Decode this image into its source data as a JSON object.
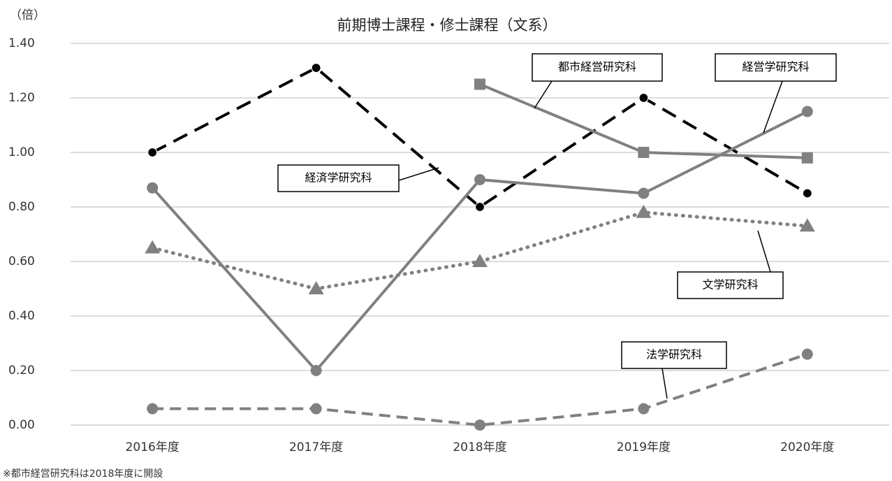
{
  "chart_data": {
    "type": "line",
    "title": "前期博士課程・修士課程（文系）",
    "y_label": "（倍）",
    "note": "※都市経営研究科は2018年度に開設",
    "categories": [
      "2016年度",
      "2017年度",
      "2018年度",
      "2019年度",
      "2020年度"
    ],
    "ylim": [
      0,
      1.4
    ],
    "yticks": [
      {
        "value": 0,
        "label": "0.00"
      },
      {
        "value": 0.2,
        "label": "0.20"
      },
      {
        "value": 0.4,
        "label": "0.40"
      },
      {
        "value": 0.6,
        "label": "0.60"
      },
      {
        "value": 0.8,
        "label": "0.80"
      },
      {
        "value": 1.0,
        "label": "1.00"
      },
      {
        "value": 1.2,
        "label": "1.20"
      },
      {
        "value": 1.4,
        "label": "1.40"
      }
    ],
    "grid": true,
    "series": [
      {
        "name": "経済学研究科",
        "color": "#000000",
        "dash": "dashed",
        "marker": "circle",
        "values": [
          1.0,
          1.31,
          0.8,
          1.2,
          0.85
        ]
      },
      {
        "name": "経営学研究科",
        "color": "#808080",
        "dash": "solid",
        "marker": "circle",
        "values": [
          0.87,
          0.2,
          0.9,
          0.85,
          1.15
        ]
      },
      {
        "name": "都市経営研究科",
        "color": "#808080",
        "dash": "solid",
        "marker": "square",
        "values": [
          null,
          null,
          1.25,
          1.0,
          0.98
        ]
      },
      {
        "name": "文学研究科",
        "color": "#808080",
        "dash": "dotted",
        "marker": "triangle",
        "values": [
          0.65,
          0.5,
          0.6,
          0.78,
          0.73
        ]
      },
      {
        "name": "法学研究科",
        "color": "#808080",
        "dash": "dashed",
        "marker": "circle",
        "values": [
          0.06,
          0.06,
          0.0,
          0.06,
          0.26
        ]
      }
    ]
  }
}
